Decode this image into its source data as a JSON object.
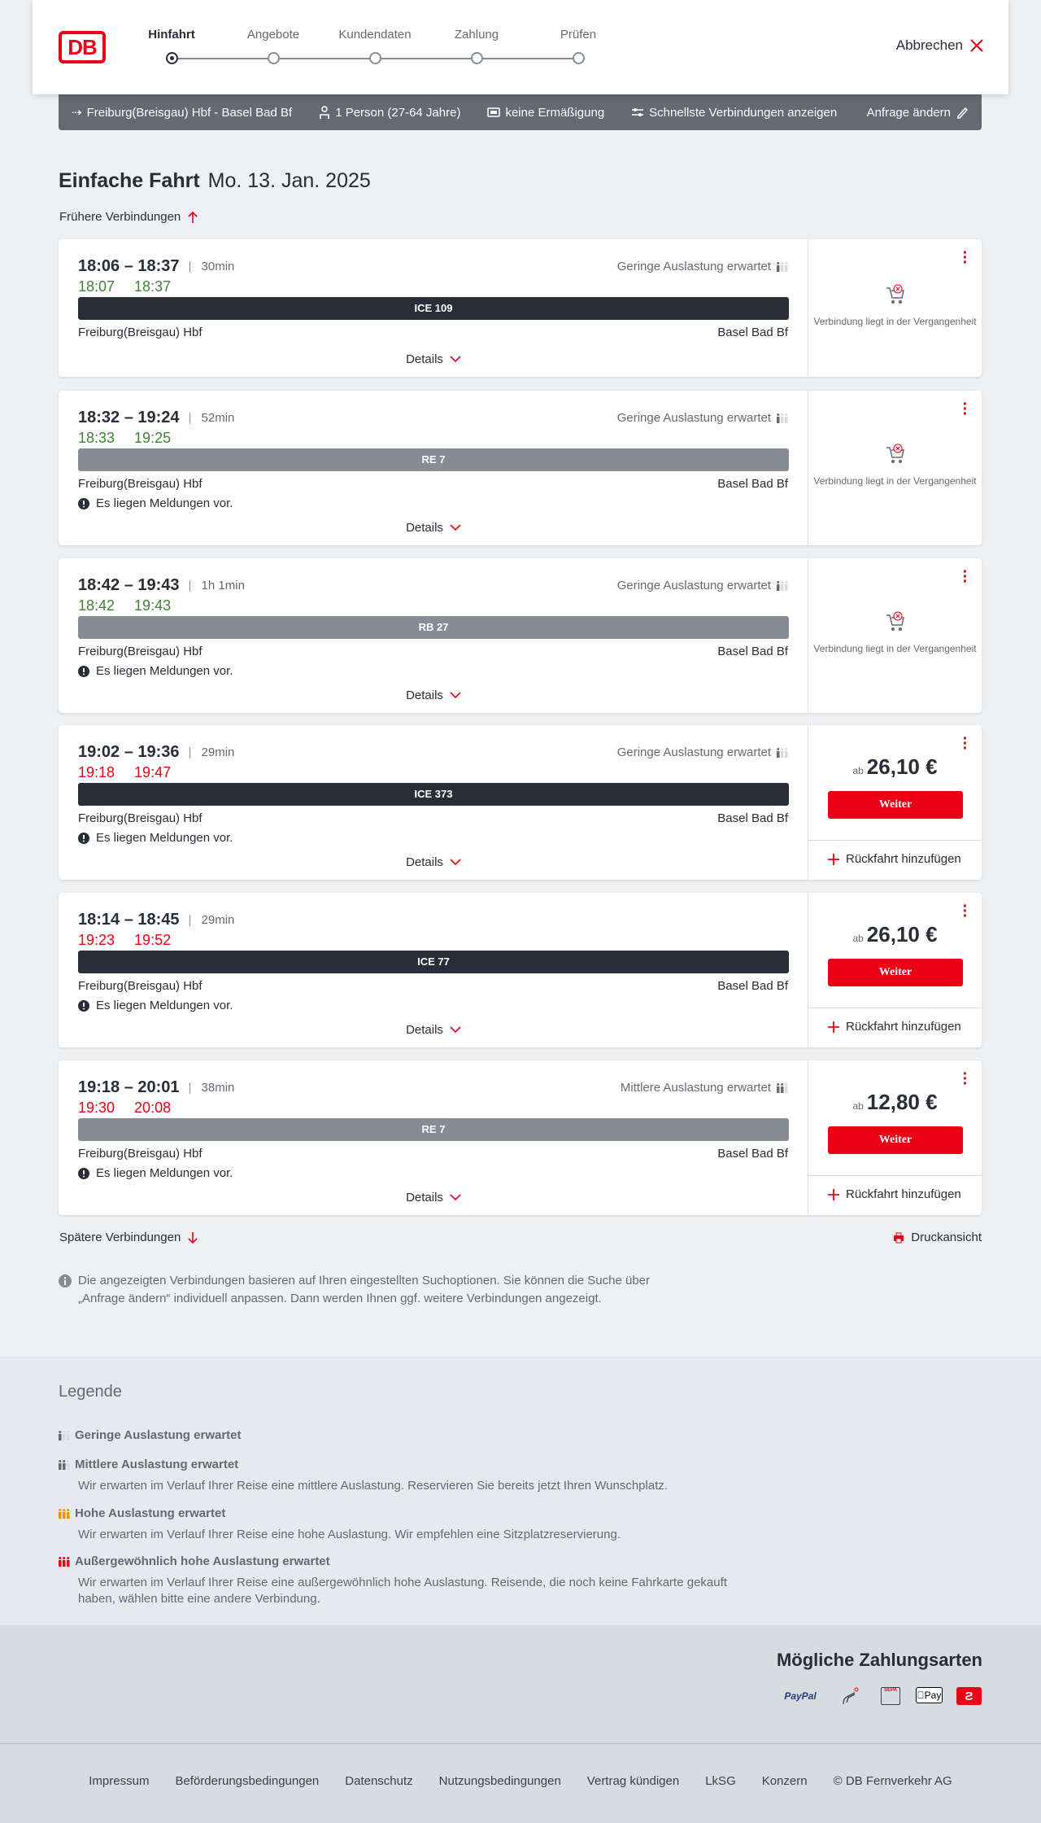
{
  "header": {
    "logo": "DB",
    "steps": [
      "Hinfahrt",
      "Angebote",
      "Kundendaten",
      "Zahlung",
      "Prüfen"
    ],
    "active_step": 0,
    "cancel": "Abbrechen"
  },
  "summary": {
    "route": "Freiburg(Breisgau) Hbf - Basel Bad Bf",
    "persons": "1 Person (27-64 Jahre)",
    "discount": "keine Ermäßigung",
    "filter": "Schnellste Verbindungen anzeigen",
    "edit": "Anfrage ändern"
  },
  "page": {
    "title": "Einfache Fahrt",
    "date": "Mo. 13. Jan. 2025",
    "earlier": "Frühere Verbindungen",
    "later": "Spätere Verbindungen",
    "print": "Druckansicht",
    "info": "Die angezeigten Verbindungen basieren auf Ihren eingestellten Suchoptionen. Sie können die Suche über „Anfrage ändern“ individuell anpassen. Dann werden Ihnen ggf. weitere Verbindungen angezeigt."
  },
  "colors": {
    "brand": "#ec0016",
    "on_time": "#408335",
    "delayed": "#ec0016",
    "ice_bar": "#282d37",
    "regional_bar": "#878c96"
  },
  "labels": {
    "details": "Details",
    "past": "Verbindung liegt in der Vergangenheit",
    "price_prefix": "ab",
    "continue": "Weiter",
    "return": "Rückfahrt hinzufügen",
    "message": "Es liegen Meldungen vor."
  },
  "connections": [
    {
      "times": "18:06 – 18:37",
      "duration": "30min",
      "actual_dep": "18:07",
      "actual_arr": "18:37",
      "delayed": false,
      "occupancy": "Geringe Auslastung erwartet",
      "occ_level": 1,
      "train": "ICE 109",
      "train_type": "ice",
      "from": "Freiburg(Breisgau) Hbf",
      "to": "Basel Bad Bf",
      "message": false,
      "price": null
    },
    {
      "times": "18:32 – 19:24",
      "duration": "52min",
      "actual_dep": "18:33",
      "actual_arr": "19:25",
      "delayed": false,
      "occupancy": "Geringe Auslastung erwartet",
      "occ_level": 1,
      "train": "RE 7",
      "train_type": "regional",
      "from": "Freiburg(Breisgau) Hbf",
      "to": "Basel Bad Bf",
      "message": true,
      "price": null
    },
    {
      "times": "18:42 – 19:43",
      "duration": "1h 1min",
      "actual_dep": "18:42",
      "actual_arr": "19:43",
      "delayed": false,
      "occupancy": "Geringe Auslastung erwartet",
      "occ_level": 1,
      "train": "RB 27",
      "train_type": "regional",
      "from": "Freiburg(Breisgau) Hbf",
      "to": "Basel Bad Bf",
      "message": true,
      "price": null
    },
    {
      "times": "19:02 – 19:36",
      "duration": "29min",
      "actual_dep": "19:18",
      "actual_arr": "19:47",
      "delayed": true,
      "occupancy": "Geringe Auslastung erwartet",
      "occ_level": 1,
      "train": "ICE 373",
      "train_type": "ice",
      "from": "Freiburg(Breisgau) Hbf",
      "to": "Basel Bad Bf",
      "message": true,
      "price": "26,10 €"
    },
    {
      "times": "18:14 – 18:45",
      "duration": "29min",
      "actual_dep": "19:23",
      "actual_arr": "19:52",
      "delayed": true,
      "occupancy": "",
      "occ_level": 0,
      "train": "ICE 77",
      "train_type": "ice",
      "from": "Freiburg(Breisgau) Hbf",
      "to": "Basel Bad Bf",
      "message": true,
      "price": "26,10 €"
    },
    {
      "times": "19:18 – 20:01",
      "duration": "38min",
      "actual_dep": "19:30",
      "actual_arr": "20:08",
      "delayed": true,
      "occupancy": "Mittlere Auslastung erwartet",
      "occ_level": 2,
      "train": "RE 7",
      "train_type": "regional",
      "from": "Freiburg(Breisgau) Hbf",
      "to": "Basel Bad Bf",
      "message": true,
      "price": "12,80 €"
    }
  ],
  "legend": {
    "title": "Legende",
    "items": [
      {
        "title": "Geringe Auslastung erwartet",
        "desc": "",
        "level": 1
      },
      {
        "title": "Mittlere Auslastung erwartet",
        "desc": "Wir erwarten im Verlauf Ihrer Reise eine mittlere Auslastung. Reservieren Sie bereits jetzt Ihren Wunschplatz.",
        "level": 2
      },
      {
        "title": "Hohe Auslastung erwartet",
        "desc": "Wir erwarten im Verlauf Ihrer Reise eine hohe Auslastung. Wir empfehlen eine Sitzplatzreservierung.",
        "level": 3
      },
      {
        "title": "Außergewöhnlich hohe Auslastung erwartet",
        "desc": "Wir erwarten im Verlauf Ihrer Reise eine außergewöhnlich hohe Auslastung. Reisende, die noch keine Fahrkarte gekauft haben, wählen bitte eine andere Verbindung.",
        "level": 4
      }
    ]
  },
  "payment": {
    "title": "Mögliche Zahlungsarten",
    "methods": [
      {
        "name": "paypal",
        "label": "PayPal"
      },
      {
        "name": "credit-card-icon"
      },
      {
        "name": "sepa",
        "label": "SEPA"
      },
      {
        "name": "apple-pay",
        "label": "Pay"
      },
      {
        "name": "db-bonus-icon"
      }
    ]
  },
  "footer": {
    "links": [
      "Impressum",
      "Beförderungsbedingungen",
      "Datenschutz",
      "Nutzungsbedingungen",
      "Vertrag kündigen",
      "LkSG",
      "Konzern",
      "© DB Fernverkehr AG"
    ]
  }
}
